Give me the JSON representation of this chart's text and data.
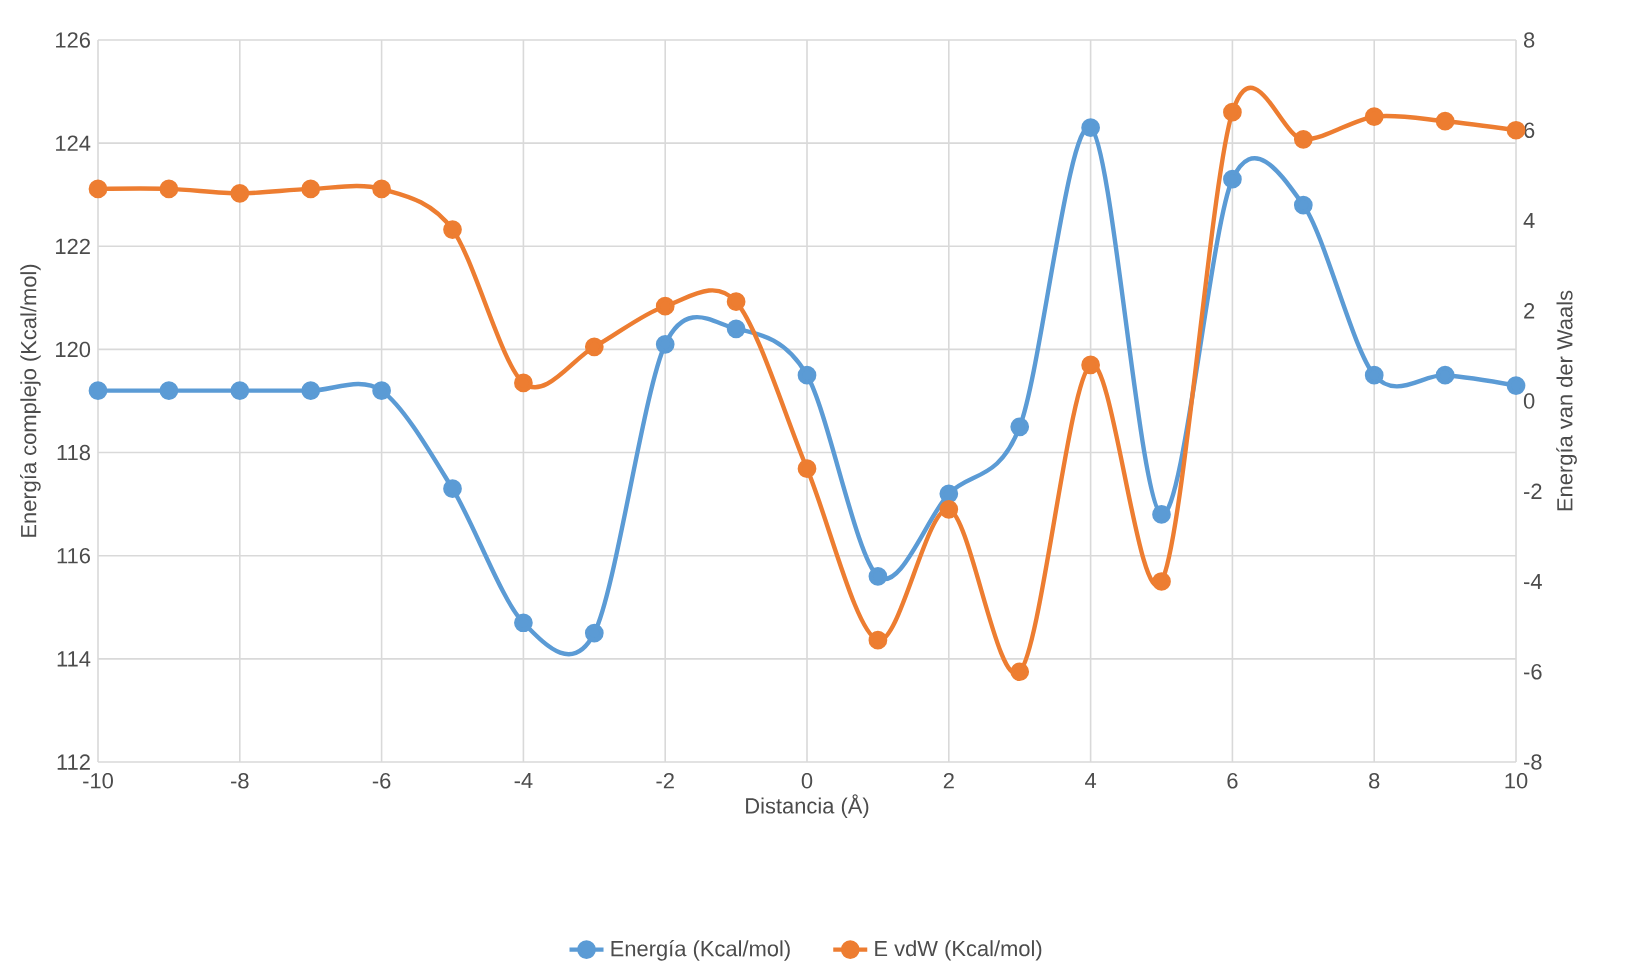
{
  "chart_data": {
    "type": "line",
    "xlabel": "Distancia (Å)",
    "ylabel": "Energía complejo (Kcal/mol)",
    "y2label": "Energía van der Waals",
    "x": [
      -10,
      -9,
      -8,
      -7,
      -6,
      -5,
      -4,
      -3,
      -2,
      -1,
      0,
      1,
      2,
      3,
      4,
      5,
      6,
      7,
      8,
      9,
      10
    ],
    "series": [
      {
        "name": "Energía (Kcal/mol)",
        "color": "#5b9bd5",
        "values": [
          119.2,
          119.2,
          119.2,
          119.2,
          119.2,
          117.3,
          114.7,
          114.5,
          120.1,
          120.4,
          119.5,
          115.6,
          117.2,
          118.5,
          124.3,
          116.8,
          123.3,
          122.8,
          119.5,
          119.5,
          119.3
        ]
      },
      {
        "name": "E vdW (Kcal/mol)",
        "color": "#ed7d31",
        "axis": "y2",
        "values": [
          4.7,
          4.7,
          4.6,
          4.7,
          4.7,
          3.8,
          0.4,
          1.2,
          2.1,
          2.2,
          -1.5,
          -5.3,
          -2.4,
          -6.0,
          0.8,
          -4.0,
          6.4,
          5.8,
          6.3,
          6.2,
          6.0
        ]
      }
    ],
    "xlim": [
      -10,
      10
    ],
    "xticks": [
      -10,
      -8,
      -6,
      -4,
      -2,
      0,
      2,
      4,
      6,
      8,
      10
    ],
    "ylim": [
      112,
      126
    ],
    "yticks": [
      112,
      114,
      116,
      118,
      120,
      122,
      124,
      126
    ],
    "y2lim": [
      -8,
      8
    ],
    "y2ticks": [
      -8,
      -6,
      -4,
      -2,
      0,
      2,
      4,
      6,
      8
    ],
    "grid": true,
    "legend": "bottom",
    "marker": "circle",
    "line_style": "solid"
  }
}
